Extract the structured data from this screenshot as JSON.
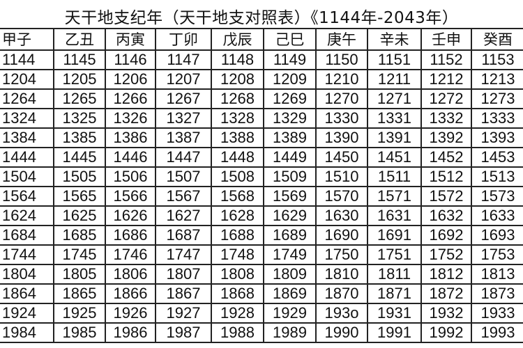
{
  "title": "天干地支纪年（天干地支对照表）《1144年-2043年）",
  "table": {
    "headers": [
      "甲子",
      "乙丑",
      "丙寅",
      "丁卯",
      "戊辰",
      "己巳",
      "庚午",
      "辛未",
      "壬申",
      "癸酉"
    ],
    "rows": [
      [
        "1144",
        "1145",
        "1146",
        "1147",
        "1148",
        "1149",
        "1150",
        "1151",
        "1152",
        "1153"
      ],
      [
        "1204",
        "1205",
        "1206",
        "1207",
        "1208",
        "1209",
        "1210",
        "1211",
        "1212",
        "1213"
      ],
      [
        "1264",
        "1265",
        "1266",
        "1267",
        "1268",
        "1269",
        "1270",
        "1271",
        "1272",
        "1273"
      ],
      [
        "1324",
        "1325",
        "1326",
        "1327",
        "1328",
        "1329",
        "1330",
        "1331",
        "1332",
        "1333"
      ],
      [
        "1384",
        "1385",
        "1386",
        "1387",
        "1388",
        "1389",
        "1390",
        "1391",
        "1392",
        "1393"
      ],
      [
        "1444",
        "1445",
        "1446",
        "1447",
        "1448",
        "1449",
        "1450",
        "1451",
        "1452",
        "1453"
      ],
      [
        "1504",
        "1505",
        "1506",
        "1507",
        "1508",
        "1509",
        "1510",
        "1511",
        "1512",
        "1513"
      ],
      [
        "1564",
        "1565",
        "1566",
        "1567",
        "1568",
        "1569",
        "1570",
        "1571",
        "1572",
        "1573"
      ],
      [
        "1624",
        "1625",
        "1626",
        "1627",
        "1628",
        "1629",
        "1630",
        "1631",
        "1632",
        "1633"
      ],
      [
        "1684",
        "1685",
        "1686",
        "1687",
        "1688",
        "1689",
        "1690",
        "1691",
        "1692",
        "1693"
      ],
      [
        "1744",
        "1745",
        "1746",
        "1747",
        "1748",
        "1749",
        "1750",
        "1751",
        "1752",
        "1753"
      ],
      [
        "1804",
        "1805",
        "1806",
        "1807",
        "1808",
        "1809",
        "1810",
        "1811",
        "1812",
        "1813"
      ],
      [
        "1864",
        "1865",
        "1866",
        "1867",
        "1868",
        "1869",
        "1870",
        "1871",
        "1872",
        "1873"
      ],
      [
        "1924",
        "1925",
        "1926",
        "1927",
        "1928",
        "1929",
        "193o",
        "1931",
        "1932",
        "1933"
      ],
      [
        "1984",
        "1985",
        "1986",
        "1987",
        "1988",
        "1989",
        "1990",
        "1991",
        "1992",
        "1993"
      ]
    ]
  }
}
